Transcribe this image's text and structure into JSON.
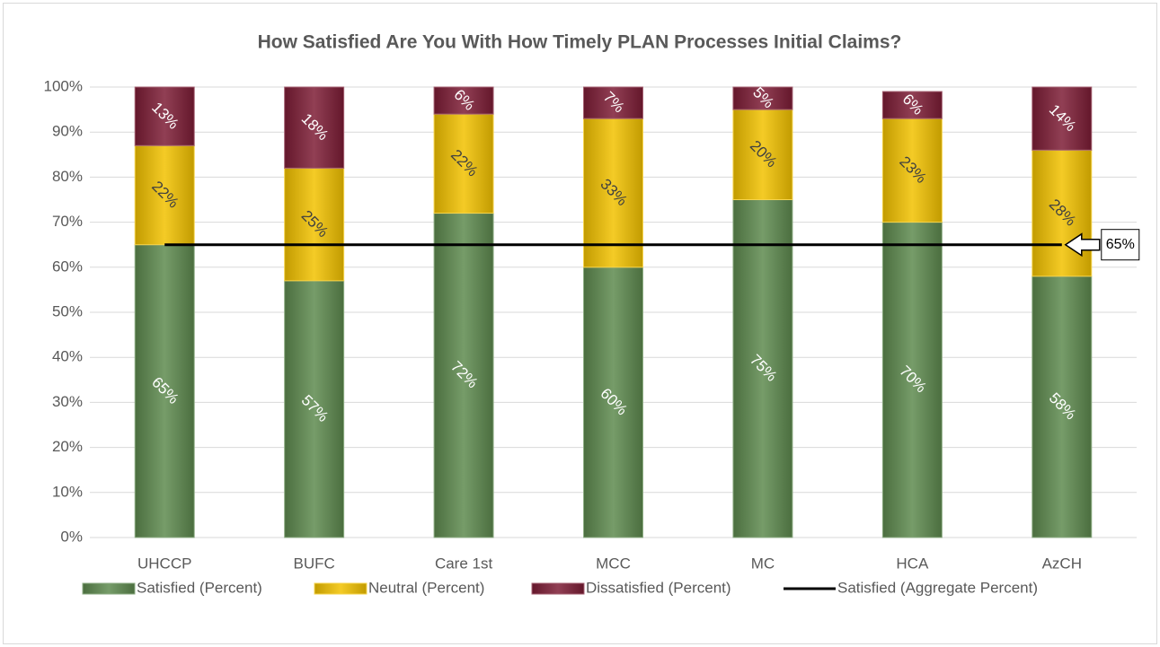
{
  "chart_data": {
    "type": "stacked_bar_line",
    "title": "How Satisfied Are You With How Timely PLAN Processes Initial Claims?",
    "categories": [
      "UHCCP",
      "BUFC",
      "Care 1st",
      "MCC",
      "MC",
      "HCA",
      "AzCH"
    ],
    "series": [
      {
        "name": "Satisfied (Percent)",
        "color": "#5e8a4f",
        "values": [
          65,
          57,
          72,
          60,
          75,
          70,
          58
        ],
        "value_labels": [
          "65%",
          "57%",
          "72%",
          "60%",
          "75%",
          "70%",
          "58%"
        ]
      },
      {
        "name": "Neutral (Percent)",
        "color": "#f2c200",
        "values": [
          22,
          25,
          22,
          33,
          20,
          23,
          28
        ],
        "value_labels": [
          "22%",
          "25%",
          "22%",
          "33%",
          "20%",
          "23%",
          "28%"
        ]
      },
      {
        "name": "Dissatisfied (Percent)",
        "color": "#7d1d36",
        "values": [
          13,
          18,
          6,
          7,
          5,
          6,
          14
        ],
        "value_labels": [
          "13%",
          "18%",
          "6%",
          "7%",
          "5%",
          "6%",
          "14%"
        ]
      },
      {
        "name": "Satisfied (Aggregate Percent)",
        "color": "#000000",
        "type": "line",
        "values": [
          65,
          65,
          65,
          65,
          65,
          65,
          65
        ],
        "value_labels": [
          null,
          null,
          null,
          null,
          null,
          null,
          "65%"
        ]
      }
    ],
    "ylim": [
      0,
      100
    ],
    "yticks": [
      {
        "value": 0,
        "label": "0%"
      },
      {
        "value": 10,
        "label": "10%"
      },
      {
        "value": 20,
        "label": "20%"
      },
      {
        "value": 30,
        "label": "30%"
      },
      {
        "value": 40,
        "label": "40%"
      },
      {
        "value": 50,
        "label": "50%"
      },
      {
        "value": 60,
        "label": "60%"
      },
      {
        "value": 70,
        "label": "70%"
      },
      {
        "value": 80,
        "label": "80%"
      },
      {
        "value": 90,
        "label": "90%"
      },
      {
        "value": 100,
        "label": "100%"
      }
    ],
    "grid": true,
    "legend": "bottom"
  }
}
